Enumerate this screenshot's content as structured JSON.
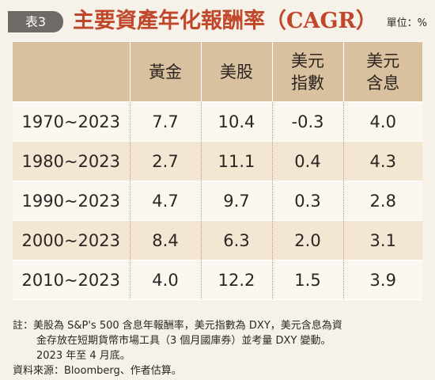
{
  "header": {
    "table_label": "表3",
    "title": "主要資產年化報酬率（CAGR）",
    "unit": "單位：%"
  },
  "table": {
    "columns": [
      "",
      "黃金",
      "美股",
      "美元\n指數",
      "美元\n含息"
    ],
    "rows": [
      {
        "period": "1970~2023",
        "gold": "7.7",
        "stocks": "10.4",
        "dxy": "-0.3",
        "dxy_carry": "4.0"
      },
      {
        "period": "1980~2023",
        "gold": "2.7",
        "stocks": "11.1",
        "dxy": "0.4",
        "dxy_carry": "4.3"
      },
      {
        "period": "1990~2023",
        "gold": "4.7",
        "stocks": "9.7",
        "dxy": "0.3",
        "dxy_carry": "2.8"
      },
      {
        "period": "2000~2023",
        "gold": "8.4",
        "stocks": "6.3",
        "dxy": "2.0",
        "dxy_carry": "3.1"
      },
      {
        "period": "2010~2023",
        "gold": "4.0",
        "stocks": "12.2",
        "dxy": "1.5",
        "dxy_carry": "3.9"
      }
    ]
  },
  "notes": {
    "note_line1": "註：美股為 S&P's 500 含息年報酬率，美元指數為 DXY，美元含息為資",
    "note_line2": "金存放在短期貨幣市場工具（3 個月國庫券）並考量 DXY 變動。",
    "note_line3": "2023 年至 4 月底。",
    "source": "資料來源：Bloomberg、作者估算。"
  },
  "colors": {
    "title": "#c1472a",
    "badge": "#6f6a66",
    "header_bg": "#d9c09e",
    "row_tint": "#f3e6d2",
    "row_light": "#fbf8f2",
    "page_bg": "#f6f2ea"
  }
}
